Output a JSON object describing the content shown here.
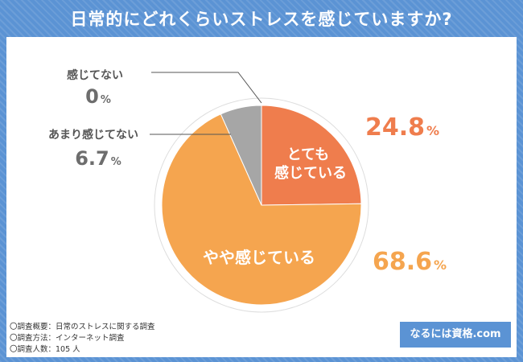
{
  "header": {
    "title": "日常的にどれくらいストレスを感じていますか?"
  },
  "chart_data": {
    "type": "pie",
    "title": "日常的にどれくらいストレスを感じていますか?",
    "unit": "%",
    "slices": [
      {
        "label": "とても感じている",
        "label_lines": [
          "とても",
          "感じている"
        ],
        "value": 24.8,
        "value_text": "24.8",
        "color": "#ef7d4d"
      },
      {
        "label": "やや感じている",
        "label_lines": [
          "やや感じている"
        ],
        "value": 68.6,
        "value_text": "68.6",
        "color": "#f5a54f"
      },
      {
        "label": "あまり感じてない",
        "label_lines": [
          "あまり感じてない"
        ],
        "value": 6.7,
        "value_text": "6.7",
        "color": "#a6a6a6"
      },
      {
        "label": "感じてない",
        "label_lines": [
          "感じてない"
        ],
        "value": 0,
        "value_text": "0",
        "color": "#d9d9d9"
      }
    ]
  },
  "footnotes": [
    "〇調査概要：日常のストレスに関する調査",
    "〇調査方法：インターネット調査",
    "〇調査人数：105 人"
  ],
  "brand": {
    "label": "なるには資格.com"
  }
}
